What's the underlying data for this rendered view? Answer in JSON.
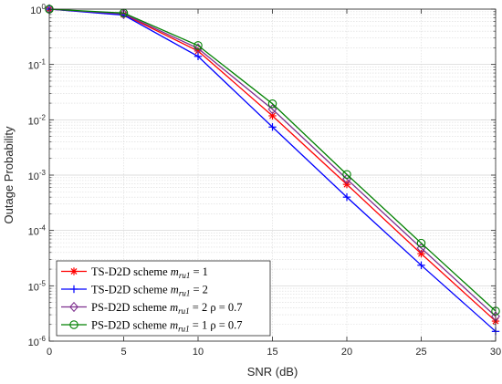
{
  "chart_data": {
    "type": "line",
    "xlabel": "SNR (dB)",
    "ylabel": "Outage Probability",
    "x": [
      0,
      5,
      10,
      15,
      20,
      25,
      30
    ],
    "xticks": [
      0,
      5,
      10,
      15,
      20,
      25,
      30
    ],
    "xlim": [
      0,
      30
    ],
    "ylim": [
      1e-06,
      1
    ],
    "yscale": "log",
    "yticks": [
      {
        "base": "10",
        "exp": "0"
      },
      {
        "base": "10",
        "exp": "-1"
      },
      {
        "base": "10",
        "exp": "-2"
      },
      {
        "base": "10",
        "exp": "-3"
      },
      {
        "base": "10",
        "exp": "-4"
      },
      {
        "base": "10",
        "exp": "-5"
      },
      {
        "base": "10",
        "exp": "-6"
      }
    ],
    "grid": true,
    "legend_position": "bottom-left",
    "series": [
      {
        "name": "TS-D2D scheme m_ru1 = 1",
        "legend": {
          "pre": "TS-D2D scheme ",
          "var": "m",
          "sub": "ru1",
          "post": " = 1"
        },
        "color": "#ff0000",
        "marker": "asterisk",
        "values": [
          1.0,
          0.8,
          0.175,
          0.0118,
          0.00068,
          3.8e-05,
          2.3e-06
        ]
      },
      {
        "name": "TS-D2D scheme m_ru1 = 2",
        "legend": {
          "pre": "TS-D2D scheme ",
          "var": "m",
          "sub": "ru1",
          "post": " = 2"
        },
        "color": "#0000ff",
        "marker": "plus",
        "values": [
          1.0,
          0.78,
          0.14,
          0.0074,
          0.0004,
          2.35e-05,
          1.5e-06
        ]
      },
      {
        "name": "PS-D2D scheme m_ru1 = 2 ρ = 0.7",
        "legend": {
          "pre": "PS-D2D scheme ",
          "var": "m",
          "sub": "ru1",
          "post": " = 2 ρ = 0.7"
        },
        "color": "#7e2f8e",
        "marker": "diamond",
        "values": [
          1.0,
          0.82,
          0.195,
          0.0155,
          0.00085,
          4.8e-05,
          2.8e-06
        ]
      },
      {
        "name": "PS-D2D scheme m_ru1 = 1 ρ = 0.7",
        "legend": {
          "pre": "PS-D2D scheme ",
          "var": "m",
          "sub": "ru1",
          "post": " = 1 ρ = 0.7"
        },
        "color": "#008000",
        "marker": "circle",
        "values": [
          1.0,
          0.85,
          0.22,
          0.0195,
          0.00103,
          5.9e-05,
          3.5e-06
        ]
      }
    ]
  }
}
